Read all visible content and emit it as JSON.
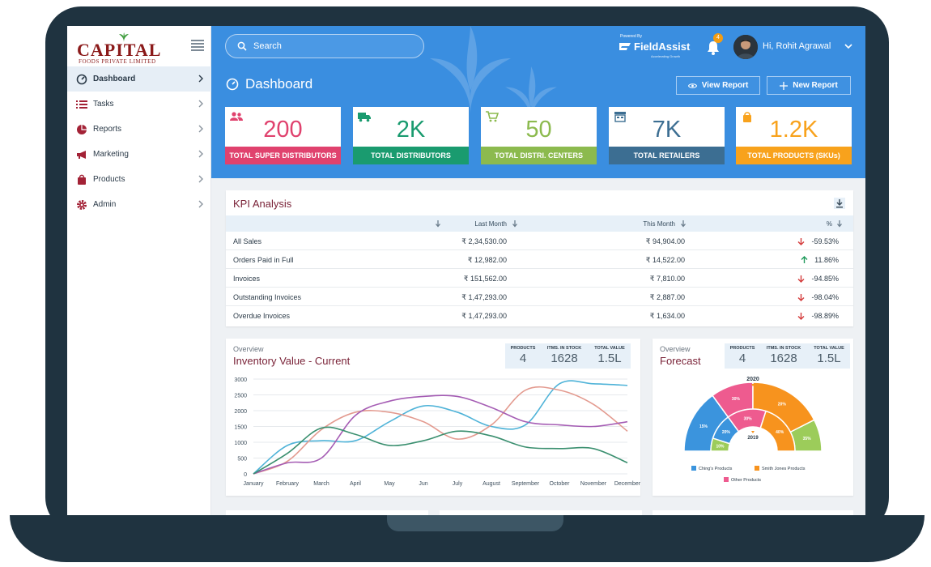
{
  "brand": {
    "name": "CAPITAL",
    "subtitle": "FOODS PRIVATE LIMITED"
  },
  "sidebar": {
    "items": [
      {
        "label": "Dashboard",
        "icon": "gauge-icon"
      },
      {
        "label": "Tasks",
        "icon": "list-icon"
      },
      {
        "label": "Reports",
        "icon": "pie-chart-icon"
      },
      {
        "label": "Marketing",
        "icon": "megaphone-icon"
      },
      {
        "label": "Products",
        "icon": "bag-icon"
      },
      {
        "label": "Admin",
        "icon": "gear-icon"
      }
    ]
  },
  "header": {
    "search_placeholder": "Search",
    "powered_by": "Powered By",
    "partner": "FieldAssist",
    "partner_tagline": "Accelerating Growth",
    "notifications": "4",
    "user": "Hi, Rohit Agrawal",
    "page_title": "Dashboard",
    "view_report": "View Report",
    "new_report": "New Report"
  },
  "stats": [
    {
      "value": "200",
      "label": "TOTAL SUPER DISTRIBUTORS",
      "color": "#e0426e"
    },
    {
      "value": "2K",
      "label": "TOTAL DISTRIBUTORS",
      "color": "#1a9b6f"
    },
    {
      "value": "50",
      "label": "TOTAL DISTRI. CENTERS",
      "color": "#8cba4e"
    },
    {
      "value": "7K",
      "label": "TOTAL RETAILERS",
      "color": "#3c6e92"
    },
    {
      "value": "1.2K",
      "label": "TOTAL PRODUCTS (SKUs)",
      "color": "#f8a21c"
    }
  ],
  "kpi": {
    "title": "KPI Analysis",
    "headers": {
      "last": "Last Month",
      "this": "This Month",
      "pct": "%"
    },
    "rows": [
      {
        "name": "All Sales",
        "last": "₹ 2,34,530.00",
        "this": "₹ 94,904.00",
        "pct": "-59.53%",
        "dir": "down"
      },
      {
        "name": "Orders Paid in Full",
        "last": "₹ 12,982.00",
        "this": "₹ 14,522.00",
        "pct": "11.86%",
        "dir": "up"
      },
      {
        "name": "Invoices",
        "last": "₹ 151,562.00",
        "this": "₹ 7,810.00",
        "pct": "-94.85%",
        "dir": "down"
      },
      {
        "name": "Outstanding Invoices",
        "last": "₹ 1,47,293.00",
        "this": "₹ 2,887.00",
        "pct": "-98.04%",
        "dir": "down"
      },
      {
        "name": "Overdue Invoices",
        "last": "₹ 1,47,293.00",
        "this": "₹ 1,634.00",
        "pct": "-98.89%",
        "dir": "down"
      }
    ]
  },
  "inventory": {
    "overview": "Overview",
    "title": "Inventory Value - Current",
    "stats": {
      "products_label": "PRODUCTS",
      "products": "4",
      "stock_label": "ITMS. IN STOCK",
      "stock": "1628",
      "value_label": "TOTAL VALUE",
      "value": "1.5L"
    }
  },
  "forecast": {
    "overview": "Overview",
    "title": "Forecast",
    "stats": {
      "products_label": "PRODUCTS",
      "products": "4",
      "stock_label": "ITMS. IN STOCK",
      "stock": "1628",
      "value_label": "TOTAL VALUE",
      "value": "1.5L"
    },
    "outer_label": "2020",
    "inner_label": "2019",
    "legend": [
      "Ching's Products",
      "Smith Jones Products",
      "Other Products"
    ]
  },
  "chart_data": [
    {
      "type": "line",
      "x": [
        "January",
        "February",
        "March",
        "April",
        "May",
        "Jun",
        "July",
        "August",
        "September",
        "October",
        "November",
        "December"
      ],
      "ylim": [
        0,
        3000
      ],
      "yticks": [
        0,
        500,
        1000,
        1500,
        2000,
        2500,
        3000
      ],
      "series": [
        {
          "color": "#4fb3d8",
          "values": [
            0,
            900,
            1050,
            1050,
            1650,
            2150,
            1950,
            1500,
            1550,
            2850,
            2850,
            2800
          ]
        },
        {
          "color": "#e39a8f",
          "values": [
            0,
            400,
            1400,
            1950,
            1950,
            1650,
            1100,
            1550,
            2650,
            2650,
            2200,
            1350
          ]
        },
        {
          "color": "#a55db4",
          "values": [
            0,
            350,
            500,
            1850,
            2300,
            2450,
            2450,
            2100,
            1650,
            1550,
            1500,
            1650
          ]
        },
        {
          "color": "#3a8f6f",
          "values": [
            0,
            650,
            1450,
            1250,
            900,
            1050,
            1350,
            1200,
            850,
            800,
            800,
            350
          ]
        }
      ]
    },
    {
      "type": "pie",
      "subtype": "nested-semicircle",
      "rings": [
        {
          "name": "2020",
          "slices": [
            {
              "label": "Ching's Products",
              "value": 30,
              "color": "#3b94dd"
            },
            {
              "label": "Other Products",
              "value": 20,
              "color": "#ee5b8f"
            },
            {
              "label": "Smith Jones Products",
              "value": 35,
              "color": "#f7931e"
            },
            {
              "label": "Other",
              "value": 15,
              "color": "#9ccc5a"
            }
          ]
        },
        {
          "name": "2019",
          "slices": [
            {
              "label": "Other",
              "value": 10,
              "color": "#9ccc5a"
            },
            {
              "label": "Ching's Products",
              "value": 20,
              "color": "#3b94dd"
            },
            {
              "label": "Other Products",
              "value": 30,
              "color": "#ee5b8f"
            },
            {
              "label": "Smith Jones Products",
              "value": 40,
              "color": "#f7931e"
            }
          ]
        }
      ],
      "slice_labels": [
        "15%",
        "30%",
        "20%",
        "35%",
        "10%",
        "20%",
        "30%",
        "40%"
      ]
    }
  ]
}
